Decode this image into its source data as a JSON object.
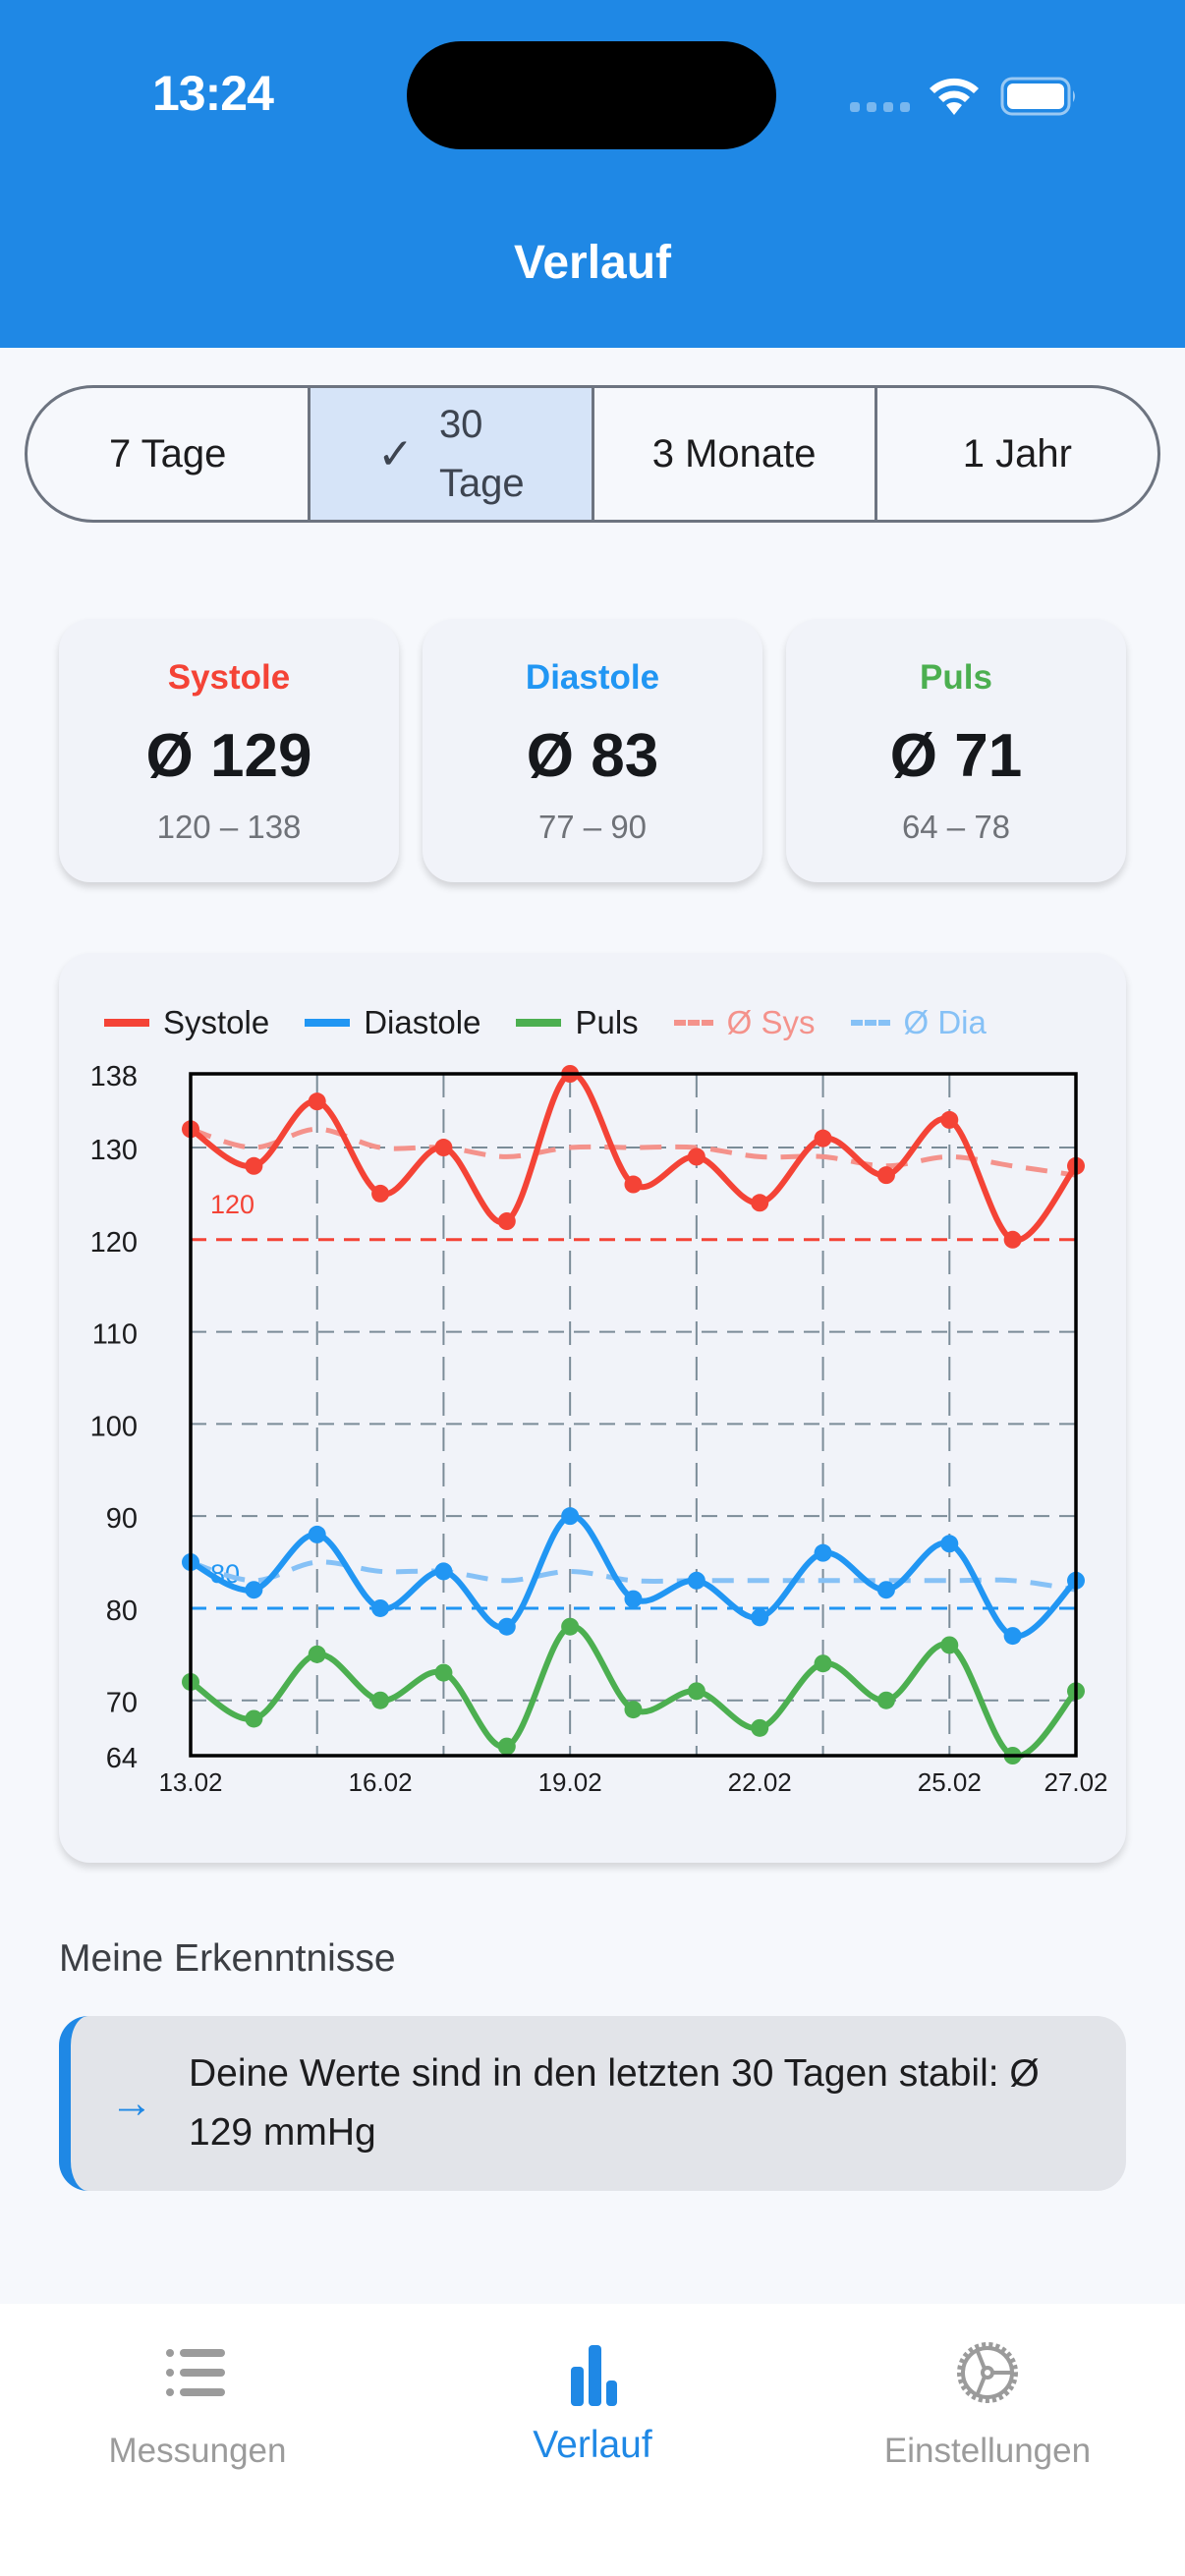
{
  "status_bar": {
    "time": "13:24"
  },
  "header": {
    "title": "Verlauf"
  },
  "colors": {
    "accent": "#1f88e5",
    "systole": "#f44336",
    "diastole": "#2196f3",
    "puls": "#4caf50",
    "avg_sys": "#f4928b",
    "avg_dia": "#86c1f6"
  },
  "range_selector": {
    "options": [
      {
        "label": "7 Tage",
        "selected": false
      },
      {
        "label_line1": "30",
        "label_line2": "Tage",
        "label": "30 Tage",
        "selected": true
      },
      {
        "label": "3 Monate",
        "selected": false
      },
      {
        "label": "1 Jahr",
        "selected": false
      }
    ],
    "check_icon": "✓"
  },
  "stats": [
    {
      "label": "Systole",
      "value": "Ø 129",
      "range": "120 – 138",
      "color": "#f44336"
    },
    {
      "label": "Diastole",
      "value": "Ø 83",
      "range": "77 – 90",
      "color": "#2196f3"
    },
    {
      "label": "Puls",
      "value": "Ø 71",
      "range": "64 – 78",
      "color": "#4caf50"
    }
  ],
  "legend": [
    {
      "label": "Systole",
      "color": "#f44336",
      "dashed": false,
      "text_color": "#1c1c1e"
    },
    {
      "label": "Diastole",
      "color": "#2196f3",
      "dashed": false,
      "text_color": "#1c1c1e"
    },
    {
      "label": "Puls",
      "color": "#4caf50",
      "dashed": false,
      "text_color": "#1c1c1e"
    },
    {
      "label": "Ø Sys",
      "color": "#f4928b",
      "dashed": true,
      "text_color": "#f4928b"
    },
    {
      "label": "Ø Dia",
      "color": "#86c1f6",
      "dashed": true,
      "text_color": "#86c1f6"
    }
  ],
  "chart_data": {
    "type": "line",
    "title": "",
    "xlabel": "",
    "ylabel": "",
    "x": [
      "13.02",
      "14.02",
      "15.02",
      "16.02",
      "17.02",
      "18.02",
      "19.02",
      "20.02",
      "21.02",
      "22.02",
      "23.02",
      "24.02",
      "25.02",
      "26.02",
      "27.02"
    ],
    "x_tick_labels": [
      {
        "index": 0,
        "label": "13.02"
      },
      {
        "index": 3,
        "label": "16.02"
      },
      {
        "index": 6,
        "label": "19.02"
      },
      {
        "index": 9,
        "label": "22.02"
      },
      {
        "index": 12,
        "label": "25.02"
      },
      {
        "index": 14,
        "label": "27.02"
      }
    ],
    "y_ticks": [
      138,
      130,
      120,
      110,
      100,
      90,
      80,
      70,
      64
    ],
    "ylim": [
      64,
      138
    ],
    "grid": true,
    "legend_position": "top",
    "series": [
      {
        "name": "Systole",
        "color": "#f44336",
        "style": "solid",
        "markers": true,
        "values": [
          132,
          128,
          135,
          125,
          130,
          122,
          138,
          126,
          129,
          124,
          131,
          127,
          133,
          120,
          128
        ]
      },
      {
        "name": "Diastole",
        "color": "#2196f3",
        "style": "solid",
        "markers": true,
        "values": [
          85,
          82,
          88,
          80,
          84,
          78,
          90,
          81,
          83,
          79,
          86,
          82,
          87,
          77,
          83
        ]
      },
      {
        "name": "Puls",
        "color": "#4caf50",
        "style": "solid",
        "markers": true,
        "values": [
          72,
          68,
          75,
          70,
          73,
          65,
          78,
          69,
          71,
          67,
          74,
          70,
          76,
          64,
          71
        ]
      },
      {
        "name": "Ø Sys",
        "color": "#f4928b",
        "style": "dashed",
        "markers": false,
        "values": [
          132,
          130,
          132,
          130,
          130,
          129,
          130,
          130,
          130,
          129,
          129,
          128,
          129,
          128,
          127
        ]
      },
      {
        "name": "Ø Dia",
        "color": "#86c1f6",
        "style": "dashed",
        "markers": false,
        "values": [
          85,
          83,
          85,
          84,
          84,
          83,
          84,
          83,
          83,
          83,
          83,
          83,
          83,
          83,
          82
        ]
      }
    ],
    "reference_lines": [
      {
        "value": 120,
        "label": "120",
        "color": "#f44336"
      },
      {
        "value": 80,
        "label": "80",
        "color": "#2196f3"
      }
    ]
  },
  "insights": {
    "title": "Meine Erkenntnisse",
    "items": [
      {
        "icon": "→",
        "text": "Deine Werte sind in den letzten 30 Tagen stabil: Ø 129 mmHg"
      }
    ]
  },
  "tabbar": {
    "tabs": [
      {
        "label": "Messungen",
        "icon": "list-icon",
        "active": false
      },
      {
        "label": "Verlauf",
        "icon": "bar-chart-icon",
        "active": true
      },
      {
        "label": "Einstellungen",
        "icon": "gear-icon",
        "active": false
      }
    ]
  }
}
